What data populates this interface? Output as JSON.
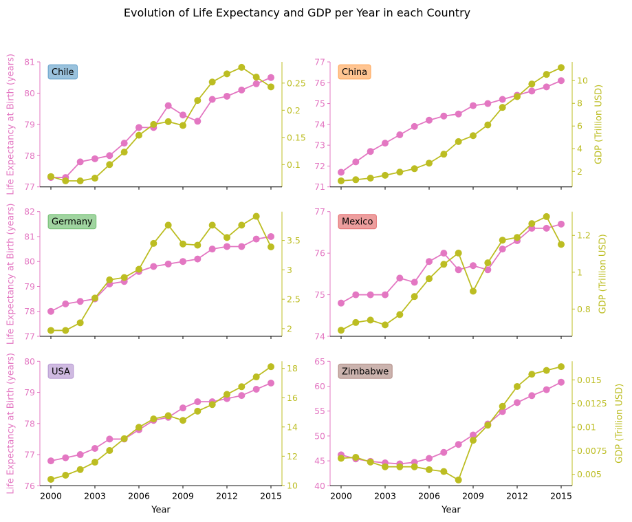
{
  "chart_data": {
    "type": "line",
    "title": "Evolution of Life Expectancy and GDP per Year in each Country",
    "xlabel": "Year",
    "ylabel_left": "Life Expectancy at Birth (years)",
    "ylabel_right": "GDP (Trillion USD)",
    "x": [
      2000,
      2001,
      2002,
      2003,
      2004,
      2005,
      2006,
      2007,
      2008,
      2009,
      2010,
      2011,
      2012,
      2013,
      2014,
      2015
    ],
    "xticks": [
      2000,
      2003,
      2006,
      2009,
      2012,
      2015
    ],
    "xlim": [
      1999.25,
      2015.75
    ],
    "colors": {
      "life_expectancy": "#e377c2",
      "gdp": "#bcbd22",
      "axis": "#000000"
    },
    "grid": false,
    "panels": [
      {
        "country": "Chile",
        "badge_color": "#1f77b4",
        "life_expectancy": [
          77.3,
          77.3,
          77.8,
          77.9,
          78.0,
          78.4,
          78.9,
          78.9,
          79.6,
          79.3,
          79.1,
          79.8,
          79.9,
          80.1,
          80.3,
          80.5
        ],
        "gdp": [
          0.078,
          0.07,
          0.07,
          0.075,
          0.1,
          0.123,
          0.154,
          0.174,
          0.179,
          0.172,
          0.218,
          0.252,
          0.267,
          0.279,
          0.261,
          0.243
        ],
        "le_ylim": [
          77,
          81
        ],
        "le_ticks": [
          "77",
          "78",
          "79",
          "80",
          "81"
        ],
        "gdp_ylim": [
          0.059,
          0.289
        ],
        "gdp_ticks": [
          "0.1",
          "0.15",
          "0.2",
          "0.25"
        ],
        "show_left_label": true,
        "show_right_label": false,
        "show_x_ticklabels": false
      },
      {
        "country": "China",
        "badge_color": "#ff7f0e",
        "life_expectancy": [
          71.7,
          72.2,
          72.7,
          73.1,
          73.5,
          73.9,
          74.2,
          74.4,
          74.5,
          74.9,
          75.0,
          75.2,
          75.4,
          75.6,
          75.8,
          76.1
        ],
        "gdp": [
          1.17,
          1.27,
          1.41,
          1.66,
          1.94,
          2.24,
          2.73,
          3.52,
          4.63,
          5.15,
          6.1,
          7.64,
          8.59,
          9.7,
          10.55,
          11.15
        ],
        "le_ylim": [
          71,
          77
        ],
        "le_ticks": [
          "71",
          "72",
          "73",
          "74",
          "75",
          "76",
          "77"
        ],
        "gdp_ylim": [
          0.64,
          11.65
        ],
        "gdp_ticks": [
          "2",
          "4",
          "6",
          "8",
          "10"
        ],
        "show_left_label": false,
        "show_right_label": true,
        "show_x_ticklabels": false
      },
      {
        "country": "Germany",
        "badge_color": "#2ca02c",
        "life_expectancy": [
          78.0,
          78.3,
          78.4,
          78.5,
          79.1,
          79.2,
          79.6,
          79.8,
          79.9,
          80.0,
          80.1,
          80.5,
          80.6,
          80.6,
          80.9,
          81.0
        ],
        "gdp": [
          1.97,
          1.97,
          2.1,
          2.52,
          2.83,
          2.87,
          3.01,
          3.45,
          3.76,
          3.44,
          3.42,
          3.76,
          3.55,
          3.76,
          3.91,
          3.39
        ],
        "le_ylim": [
          77,
          82
        ],
        "le_ticks": [
          "77",
          "78",
          "79",
          "80",
          "81",
          "82"
        ],
        "gdp_ylim": [
          1.87,
          3.99
        ],
        "gdp_ticks": [
          "2",
          "2.5",
          "3",
          "3.5"
        ],
        "show_left_label": true,
        "show_right_label": false,
        "show_x_ticklabels": false
      },
      {
        "country": "Mexico",
        "badge_color": "#d62728",
        "life_expectancy": [
          74.8,
          75.0,
          75.0,
          75.0,
          75.4,
          75.3,
          75.8,
          76.0,
          75.6,
          75.7,
          75.6,
          76.1,
          76.3,
          76.6,
          76.6,
          76.7
        ],
        "gdp": [
          0.685,
          0.727,
          0.74,
          0.714,
          0.77,
          0.868,
          0.965,
          1.043,
          1.104,
          0.897,
          1.051,
          1.174,
          1.189,
          1.264,
          1.302,
          1.151
        ],
        "le_ylim": [
          74,
          77
        ],
        "le_ticks": [
          "74",
          "75",
          "76",
          "77"
        ],
        "gdp_ylim": [
          0.652,
          1.329
        ],
        "gdp_ticks": [
          "0.8",
          "1",
          "1.2"
        ],
        "show_left_label": false,
        "show_right_label": true,
        "show_x_ticklabels": false
      },
      {
        "country": "USA",
        "badge_color": "#9467bd",
        "life_expectancy": [
          76.8,
          76.9,
          77.0,
          77.2,
          77.5,
          77.5,
          77.8,
          78.1,
          78.2,
          78.5,
          78.7,
          78.7,
          78.8,
          78.9,
          79.1,
          79.3
        ],
        "gdp": [
          10.42,
          10.7,
          11.09,
          11.59,
          12.39,
          13.2,
          13.98,
          14.55,
          14.77,
          14.45,
          15.08,
          15.53,
          16.23,
          16.75,
          17.42,
          18.12
        ],
        "le_ylim": [
          76,
          80
        ],
        "le_ticks": [
          "76",
          "77",
          "78",
          "79",
          "80"
        ],
        "gdp_ylim": [
          9.98,
          18.49
        ],
        "gdp_ticks": [
          "10",
          "12",
          "14",
          "16",
          "18"
        ],
        "show_left_label": true,
        "show_right_label": false,
        "show_x_ticklabels": true
      },
      {
        "country": "Zimbabwe",
        "badge_color": "#8c564b",
        "life_expectancy": [
          46.2,
          45.4,
          44.9,
          44.6,
          44.4,
          44.7,
          45.5,
          46.7,
          48.3,
          50.2,
          52.4,
          54.9,
          56.7,
          58.1,
          59.3,
          60.8
        ],
        "gdp": [
          0.0067,
          0.0068,
          0.0063,
          0.0058,
          0.0058,
          0.0058,
          0.0055,
          0.0053,
          0.0044,
          0.0086,
          0.0102,
          0.0122,
          0.0143,
          0.0156,
          0.016,
          0.0164
        ],
        "le_ylim": [
          40,
          65
        ],
        "le_ticks": [
          "40",
          "45",
          "50",
          "55",
          "60",
          "65"
        ],
        "gdp_ylim": [
          0.00379,
          0.01697
        ],
        "gdp_ticks": [
          "0.005",
          "0.0075",
          "0.01",
          "0.0125",
          "0.015"
        ],
        "show_left_label": false,
        "show_right_label": true,
        "show_x_ticklabels": true
      }
    ]
  }
}
